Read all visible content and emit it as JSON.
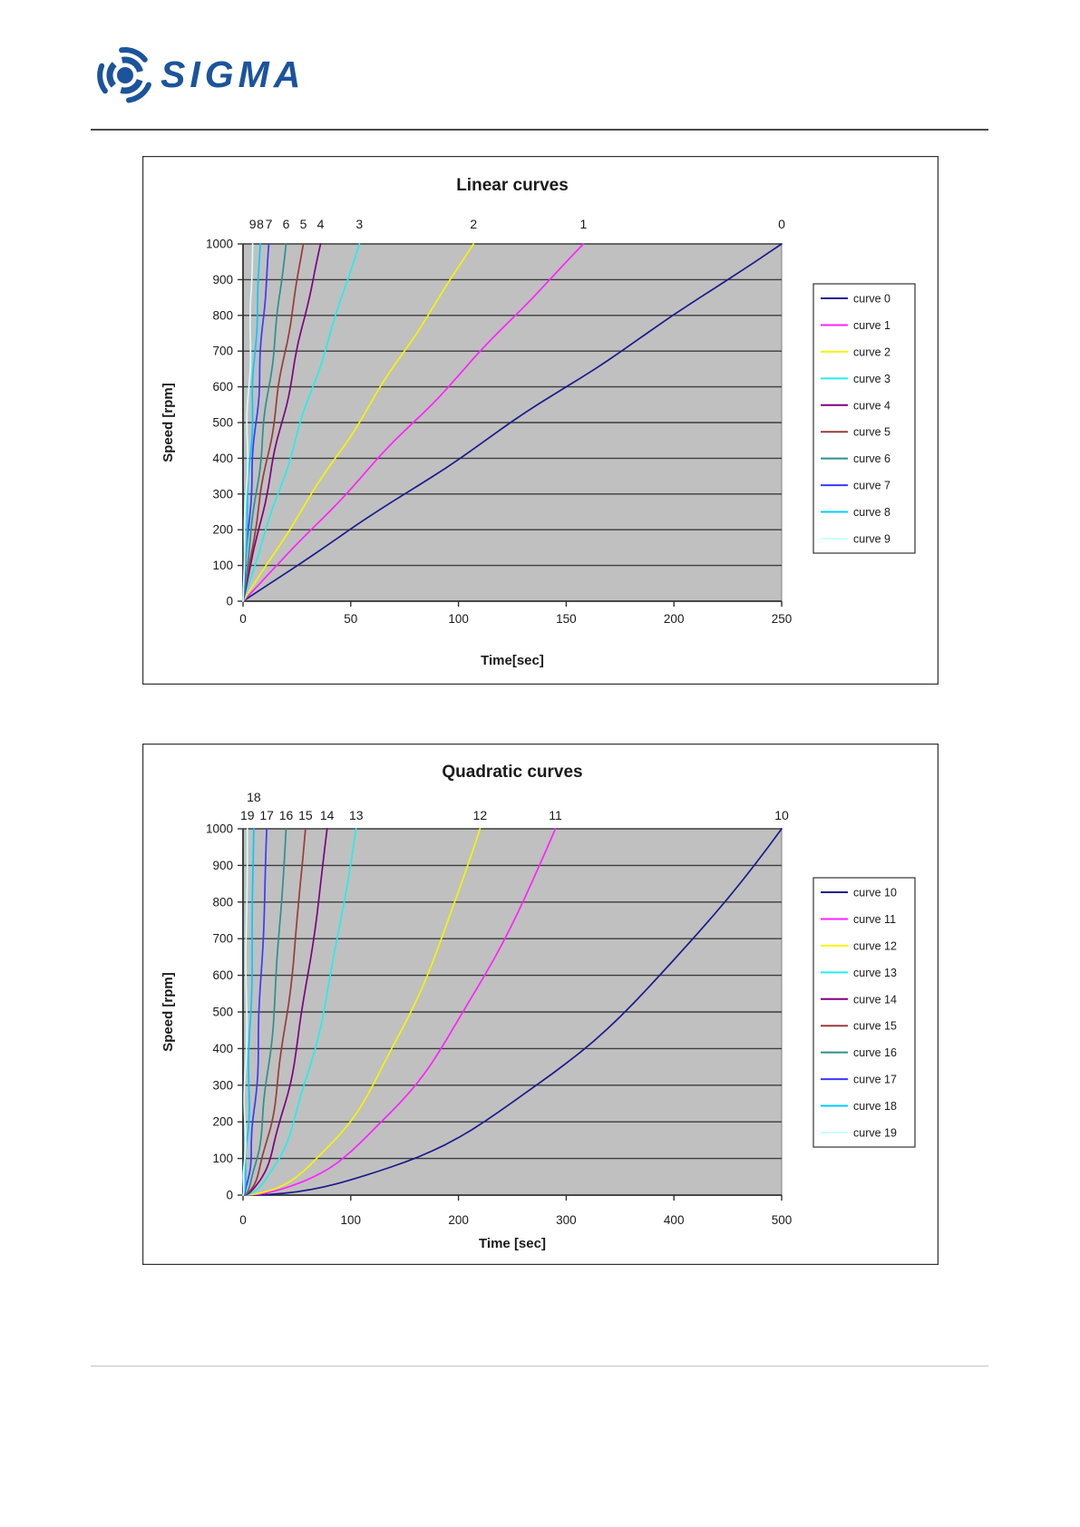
{
  "logo": {
    "text": "SIGMA",
    "color": "#1b549c"
  },
  "chart_data": [
    {
      "type": "line",
      "title": "Linear curves",
      "xlabel": "Time[sec]",
      "ylabel": "Speed [rpm]",
      "xlim": [
        0,
        250
      ],
      "ylim": [
        0,
        1000
      ],
      "x_ticks": [
        0,
        50,
        100,
        150,
        200,
        250
      ],
      "y_ticks": [
        0,
        100,
        200,
        300,
        400,
        500,
        600,
        700,
        800,
        900,
        1000
      ],
      "curve_shape": "linear",
      "plot_bg": "#c0c0c0",
      "gridlines": "horizontal",
      "legend_position": "right",
      "series": [
        {
          "name": "curve 0",
          "color": "#1a1a8c",
          "time_to_max": 250,
          "end_label": "0",
          "raised": false
        },
        {
          "name": "curve 1",
          "color": "#ff22ff",
          "time_to_max": 158,
          "end_label": "1",
          "raised": false
        },
        {
          "name": "curve 2",
          "color": "#f5f500",
          "time_to_max": 107,
          "end_label": "2",
          "raised": false
        },
        {
          "name": "curve 3",
          "color": "#22eeee",
          "time_to_max": 54,
          "end_label": "3",
          "raised": false
        },
        {
          "name": "curve 4",
          "color": "#800080",
          "time_to_max": 36,
          "end_label": "4",
          "raised": false
        },
        {
          "name": "curve 5",
          "color": "#9c3a3a",
          "time_to_max": 28,
          "end_label": "5",
          "raised": false
        },
        {
          "name": "curve 6",
          "color": "#2e8f8f",
          "time_to_max": 20,
          "end_label": "6",
          "raised": false
        },
        {
          "name": "curve 7",
          "color": "#3a3aff",
          "time_to_max": 12,
          "end_label": "7",
          "raised": false
        },
        {
          "name": "curve 8",
          "color": "#00ccff",
          "time_to_max": 8,
          "end_label": "8",
          "raised": false
        },
        {
          "name": "curve 9",
          "color": "#ccffff",
          "time_to_max": 4.5,
          "end_label": "9",
          "raised": false
        }
      ]
    },
    {
      "type": "line",
      "title": "Quadratic curves",
      "xlabel": "Time [sec]",
      "ylabel": "Speed [rpm]",
      "xlim": [
        0,
        500
      ],
      "ylim": [
        0,
        1000
      ],
      "x_ticks": [
        0,
        100,
        200,
        300,
        400,
        500
      ],
      "y_ticks": [
        0,
        100,
        200,
        300,
        400,
        500,
        600,
        700,
        800,
        900,
        1000
      ],
      "curve_shape": "quadratic",
      "plot_bg": "#c0c0c0",
      "gridlines": "horizontal",
      "legend_position": "right",
      "series": [
        {
          "name": "curve 10",
          "color": "#1a1a8c",
          "time_to_max": 500,
          "end_label": "10",
          "raised": false
        },
        {
          "name": "curve 11",
          "color": "#ff22ff",
          "time_to_max": 290,
          "end_label": "11",
          "raised": false
        },
        {
          "name": "curve 12",
          "color": "#f5f500",
          "time_to_max": 220,
          "end_label": "12",
          "raised": false
        },
        {
          "name": "curve 13",
          "color": "#22eeee",
          "time_to_max": 105,
          "end_label": "13",
          "raised": false
        },
        {
          "name": "curve 14",
          "color": "#800080",
          "time_to_max": 78,
          "end_label": "14",
          "raised": false
        },
        {
          "name": "curve 15",
          "color": "#9c3a3a",
          "time_to_max": 58,
          "end_label": "15",
          "raised": false
        },
        {
          "name": "curve 16",
          "color": "#2e8f8f",
          "time_to_max": 40,
          "end_label": "16",
          "raised": false
        },
        {
          "name": "curve 17",
          "color": "#3a3aff",
          "time_to_max": 22,
          "end_label": "17",
          "raised": false
        },
        {
          "name": "curve 18",
          "color": "#00ccff",
          "time_to_max": 10,
          "end_label": "18",
          "raised": true
        },
        {
          "name": "curve 19",
          "color": "#ccffff",
          "time_to_max": 4,
          "end_label": "19",
          "raised": false
        }
      ]
    }
  ]
}
